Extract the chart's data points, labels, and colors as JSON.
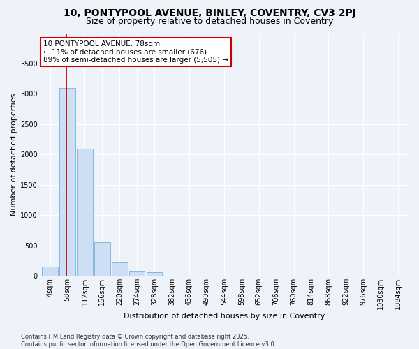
{
  "title": "10, PONTYPOOL AVENUE, BINLEY, COVENTRY, CV3 2PJ",
  "subtitle": "Size of property relative to detached houses in Coventry",
  "xlabel": "Distribution of detached houses by size in Coventry",
  "ylabel": "Number of detached properties",
  "categories": [
    "4sqm",
    "58sqm",
    "112sqm",
    "166sqm",
    "220sqm",
    "274sqm",
    "328sqm",
    "382sqm",
    "436sqm",
    "490sqm",
    "544sqm",
    "598sqm",
    "652sqm",
    "706sqm",
    "760sqm",
    "814sqm",
    "868sqm",
    "922sqm",
    "976sqm",
    "1030sqm",
    "1084sqm"
  ],
  "values": [
    150,
    3100,
    2100,
    560,
    220,
    80,
    60,
    0,
    0,
    0,
    0,
    0,
    0,
    0,
    0,
    0,
    0,
    0,
    0,
    0,
    0
  ],
  "bar_color": "#ccdff5",
  "bar_edge_color": "#7ab0d8",
  "vline_x_index": 1,
  "vline_color": "#cc0000",
  "annotation_text": "10 PONTYPOOL AVENUE: 78sqm\n← 11% of detached houses are smaller (676)\n89% of semi-detached houses are larger (5,505) →",
  "annotation_box_facecolor": "#ffffff",
  "annotation_box_edgecolor": "#cc0000",
  "ylim": [
    0,
    4000
  ],
  "yticks": [
    0,
    500,
    1000,
    1500,
    2000,
    2500,
    3000,
    3500
  ],
  "background_color": "#eef2f9",
  "grid_color": "#ffffff",
  "footer": "Contains HM Land Registry data © Crown copyright and database right 2025.\nContains public sector information licensed under the Open Government Licence v3.0.",
  "title_fontsize": 10,
  "subtitle_fontsize": 9,
  "xlabel_fontsize": 8,
  "ylabel_fontsize": 8,
  "tick_fontsize": 7,
  "annotation_fontsize": 7.5,
  "footer_fontsize": 6
}
